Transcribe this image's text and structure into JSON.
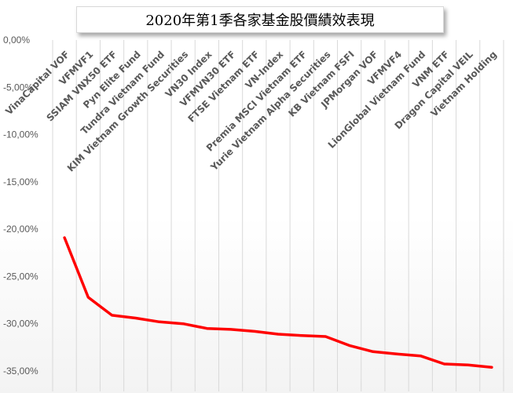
{
  "chart_data": {
    "type": "line",
    "title": "2020年第1季各家基金股價績效表現",
    "categories": [
      "VinaCapital VOF",
      "VFMVF1",
      "SSIAM VNX50 ETF",
      "Pyn Elite Fund",
      "Tundra Vietnam Fund",
      "KIM Vietnam Growth Securities",
      "VN30 Index",
      "VFMVN30 ETF",
      "FTSE Vietnam ETF",
      "VN-Index",
      "Premia MSCI Vietnam ETF",
      "Yurie Vietnam Alpha Securities",
      "KB Vietnam FSFI",
      "JPMorgan VOF",
      "VFMVF4",
      "LionGlobal Vietnam Fund",
      "VNM ETF",
      "Dragon Capital VEIL",
      "Vietnam Holding"
    ],
    "series": [
      {
        "values": [
          -20.9,
          -27.2,
          -29.1,
          -29.4,
          -29.8,
          -30.0,
          -30.5,
          -30.6,
          -30.8,
          -31.1,
          -31.25,
          -31.35,
          -32.3,
          -32.95,
          -33.2,
          -33.4,
          -34.25,
          -34.35,
          -34.6
        ],
        "color": "#ff0000"
      }
    ],
    "yticks": [
      "0,00%",
      "-5,00%",
      "-10,00%",
      "-15,00%",
      "-20,00%",
      "-25,00%",
      "-30,00%",
      "-35,00%"
    ],
    "ylim": [
      -35,
      0
    ],
    "grid": "vertical",
    "xlabel": "",
    "ylabel": ""
  }
}
